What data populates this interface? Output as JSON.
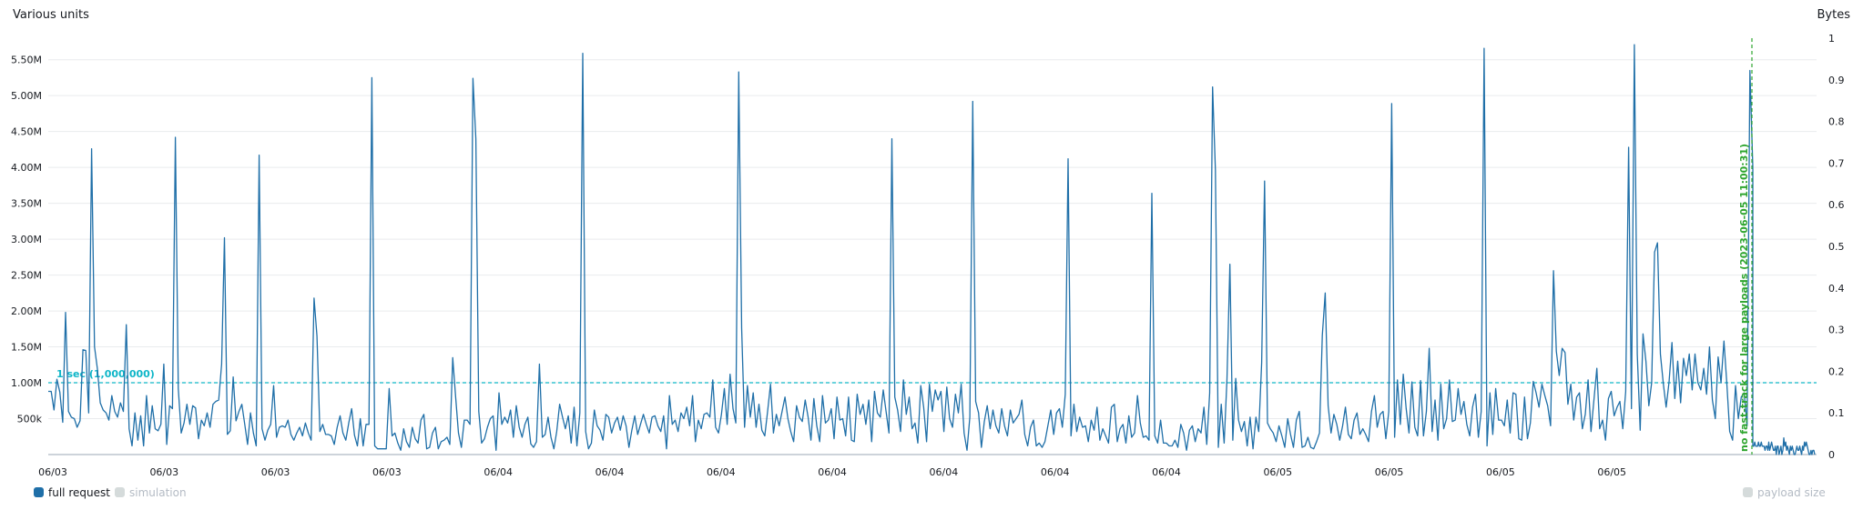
{
  "chart_data": {
    "type": "line",
    "left_axis_title": "Various units",
    "right_axis_title": "Bytes",
    "y_left": {
      "min": 0,
      "max": 5800000,
      "ticks": [
        {
          "value": 500000,
          "label": "500k"
        },
        {
          "value": 1000000,
          "label": "1.00M"
        },
        {
          "value": 1500000,
          "label": "1.50M"
        },
        {
          "value": 2000000,
          "label": "2.00M"
        },
        {
          "value": 2500000,
          "label": "2.50M"
        },
        {
          "value": 3000000,
          "label": "3.00M"
        },
        {
          "value": 3500000,
          "label": "3.50M"
        },
        {
          "value": 4000000,
          "label": "4.00M"
        },
        {
          "value": 4500000,
          "label": "4.50M"
        },
        {
          "value": 5000000,
          "label": "5.00M"
        },
        {
          "value": 5500000,
          "label": "5.50M"
        }
      ]
    },
    "y_right": {
      "min": 0,
      "max": 1,
      "ticks": [
        {
          "value": 0,
          "label": "0"
        },
        {
          "value": 0.1,
          "label": "0.1"
        },
        {
          "value": 0.2,
          "label": "0.2"
        },
        {
          "value": 0.3,
          "label": "0.3"
        },
        {
          "value": 0.4,
          "label": "0.4"
        },
        {
          "value": 0.5,
          "label": "0.5"
        },
        {
          "value": 0.6,
          "label": "0.6"
        },
        {
          "value": 0.7,
          "label": "0.7"
        },
        {
          "value": 0.8,
          "label": "0.8"
        },
        {
          "value": 0.9,
          "label": "0.9"
        },
        {
          "value": 1,
          "label": "1"
        }
      ]
    },
    "x_tick_labels": [
      "06/03",
      "06/03",
      "06/03",
      "06/03",
      "06/04",
      "06/04",
      "06/04",
      "06/04",
      "06/04",
      "06/04",
      "06/04",
      "06/05",
      "06/05",
      "06/05",
      "06/05"
    ],
    "threshold": {
      "value": 1000000,
      "label": "1 sec (1,000,000)",
      "color": "#0fb6c8"
    },
    "annotation": {
      "label": "no fast-track for large payloads (2023-06-05 11:00:31)",
      "color": "#2ea52e",
      "at_point": 498
    },
    "series": [
      {
        "name": "full request",
        "color": "#1f6fa8",
        "values": [
          880000,
          880000,
          620000,
          1050000,
          870000,
          450000,
          1980000,
          600000,
          520000,
          500000,
          380000,
          470000,
          1460000,
          1450000,
          580000,
          4260000,
          1500000,
          1200000,
          720000,
          620000,
          580000,
          480000,
          820000,
          600000,
          520000,
          720000,
          600000,
          1810000,
          360000,
          120000,
          580000,
          200000,
          540000,
          120000,
          820000,
          300000,
          680000,
          360000,
          330000,
          420000,
          1260000,
          140000,
          680000,
          640000,
          4420000,
          920000,
          300000,
          440000,
          700000,
          420000,
          680000,
          650000,
          220000,
          480000,
          400000,
          580000,
          380000,
          700000,
          740000,
          760000,
          1260000,
          3020000,
          280000,
          330000,
          1080000,
          470000,
          600000,
          700000,
          420000,
          140000,
          580000,
          300000,
          120000,
          4170000,
          360000,
          200000,
          340000,
          420000,
          960000,
          240000,
          380000,
          400000,
          380000,
          480000,
          280000,
          200000,
          300000,
          380000,
          260000,
          440000,
          300000,
          200000,
          2180000,
          1650000,
          320000,
          420000,
          280000,
          280000,
          260000,
          140000,
          380000,
          540000,
          300000,
          200000,
          440000,
          640000,
          270000,
          120000,
          500000,
          120000,
          420000,
          420000,
          5250000,
          120000,
          80000,
          80000,
          80000,
          80000,
          920000,
          260000,
          300000,
          160000,
          60000,
          360000,
          180000,
          100000,
          380000,
          220000,
          160000,
          480000,
          560000,
          80000,
          100000,
          300000,
          380000,
          80000,
          180000,
          200000,
          240000,
          140000,
          1350000,
          800000,
          300000,
          100000,
          480000,
          480000,
          420000,
          5240000,
          4400000,
          600000,
          160000,
          220000,
          380000,
          500000,
          540000,
          60000,
          860000,
          420000,
          520000,
          440000,
          620000,
          240000,
          680000,
          380000,
          240000,
          420000,
          520000,
          150000,
          100000,
          180000,
          1260000,
          240000,
          280000,
          520000,
          240000,
          80000,
          320000,
          700000,
          520000,
          360000,
          540000,
          160000,
          660000,
          120000,
          580000,
          5590000,
          320000,
          80000,
          160000,
          620000,
          400000,
          340000,
          200000,
          560000,
          520000,
          300000,
          440000,
          520000,
          340000,
          540000,
          400000,
          100000,
          340000,
          540000,
          280000,
          420000,
          560000,
          420000,
          300000,
          520000,
          540000,
          400000,
          320000,
          540000,
          80000,
          820000,
          420000,
          480000,
          320000,
          580000,
          500000,
          660000,
          400000,
          820000,
          180000,
          480000,
          360000,
          560000,
          580000,
          520000,
          1040000,
          380000,
          300000,
          560000,
          920000,
          420000,
          1120000,
          640000,
          440000,
          5330000,
          1760000,
          380000,
          960000,
          520000,
          860000,
          380000,
          700000,
          340000,
          260000,
          600000,
          980000,
          300000,
          560000,
          400000,
          600000,
          800000,
          500000,
          320000,
          180000,
          680000,
          520000,
          460000,
          760000,
          520000,
          200000,
          780000,
          400000,
          180000,
          820000,
          440000,
          480000,
          640000,
          220000,
          800000,
          480000,
          500000,
          260000,
          800000,
          200000,
          180000,
          840000,
          560000,
          700000,
          420000,
          760000,
          180000,
          880000,
          580000,
          520000,
          900000,
          600000,
          300000,
          4400000,
          800000,
          620000,
          320000,
          1040000,
          560000,
          800000,
          360000,
          440000,
          160000,
          960000,
          660000,
          180000,
          980000,
          600000,
          900000,
          760000,
          880000,
          320000,
          940000,
          500000,
          380000,
          840000,
          580000,
          980000,
          300000,
          60000,
          520000,
          4920000,
          740000,
          580000,
          100000,
          460000,
          680000,
          360000,
          620000,
          400000,
          300000,
          640000,
          400000,
          260000,
          620000,
          440000,
          500000,
          560000,
          760000,
          280000,
          120000,
          380000,
          480000,
          120000,
          160000,
          100000,
          180000,
          400000,
          620000,
          280000,
          580000,
          640000,
          380000,
          840000,
          4120000,
          260000,
          700000,
          320000,
          520000,
          380000,
          400000,
          180000,
          480000,
          340000,
          660000,
          200000,
          360000,
          260000,
          160000,
          660000,
          700000,
          180000,
          360000,
          420000,
          160000,
          540000,
          240000,
          300000,
          820000,
          440000,
          240000,
          260000,
          200000,
          3640000,
          260000,
          160000,
          480000,
          160000,
          160000,
          120000,
          120000,
          200000,
          100000,
          420000,
          300000,
          60000,
          340000,
          400000,
          180000,
          360000,
          300000,
          660000,
          140000,
          860000,
          5120000,
          3960000,
          100000,
          700000,
          160000,
          1050000,
          2650000,
          200000,
          1060000,
          480000,
          320000,
          460000,
          120000,
          520000,
          80000,
          520000,
          320000,
          1280000,
          3810000,
          440000,
          360000,
          300000,
          180000,
          400000,
          260000,
          100000,
          500000,
          280000,
          100000,
          480000,
          600000,
          100000,
          120000,
          240000,
          100000,
          80000,
          180000,
          300000,
          1660000,
          2250000,
          680000,
          300000,
          560000,
          420000,
          200000,
          400000,
          660000,
          280000,
          220000,
          480000,
          580000,
          280000,
          360000,
          280000,
          180000,
          600000,
          820000,
          380000,
          560000,
          600000,
          220000,
          600000,
          4890000,
          240000,
          1040000,
          420000,
          1120000,
          640000,
          300000,
          1010000,
          380000,
          260000,
          1030000,
          260000,
          600000,
          1480000,
          320000,
          760000,
          200000,
          980000,
          360000,
          500000,
          1040000,
          460000,
          480000,
          920000,
          560000,
          740000,
          420000,
          260000,
          660000,
          840000,
          240000,
          600000,
          5660000,
          120000,
          860000,
          280000,
          920000,
          480000,
          480000,
          400000,
          760000,
          300000,
          860000,
          840000,
          220000,
          200000,
          800000,
          220000,
          440000,
          1020000,
          860000,
          660000,
          980000,
          820000,
          680000,
          400000,
          2560000,
          1440000,
          1100000,
          1480000,
          1420000,
          700000,
          980000,
          480000,
          800000,
          860000,
          360000,
          560000,
          1040000,
          320000,
          760000,
          1200000,
          360000,
          480000,
          200000,
          780000,
          880000,
          540000,
          660000,
          740000,
          360000,
          880000,
          4280000,
          640000,
          5710000,
          1400000,
          340000,
          1680000,
          1300000,
          680000,
          1000000,
          2820000,
          2950000,
          1400000,
          1000000,
          660000,
          1010000,
          1560000,
          780000,
          1300000,
          720000,
          1340000,
          1100000,
          1400000,
          900000,
          1400000,
          1000000,
          900000,
          1200000,
          840000,
          1500000,
          760000,
          500000,
          1360000,
          1000000,
          1580000,
          1000000,
          320000,
          200000,
          960000,
          500000,
          800000,
          860000,
          400000,
          5350000,
          4000000
        ]
      },
      {
        "name": "simulation",
        "color": "#9ba7b6",
        "values": [
          0.02,
          0.02,
          0.03,
          0.02,
          0.02,
          0.02,
          0.03,
          0.02,
          0.02,
          0.03,
          0.02,
          0.02,
          0.02,
          0.01,
          0.02,
          0.02,
          0.01,
          0.03,
          0.01,
          0.02,
          0.03,
          0.02,
          0.01,
          0.01,
          0.02,
          0.0,
          0.02,
          0.02,
          0.0,
          0.01,
          0.02,
          0.0,
          0.01,
          0.04,
          0.02,
          0.03,
          0.01,
          0.02,
          0.01,
          0.0,
          0.02,
          0.01,
          0.02,
          0.01,
          0.0,
          0.0,
          0.01,
          0.02,
          0.01,
          0.01,
          0.02,
          0.01,
          0.0,
          0.02,
          0.01,
          0.03,
          0.02,
          0.03,
          0.02,
          0.01,
          0.0,
          0.0,
          0.01,
          0.0,
          0.01,
          0.01,
          0.0
        ]
      }
    ],
    "legend": {
      "position": "bottom-left"
    },
    "right_legend_label": "payload size"
  }
}
